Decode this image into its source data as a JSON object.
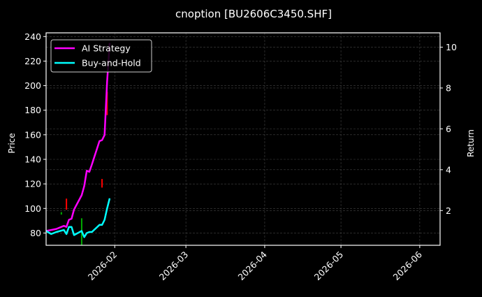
{
  "chart_data": {
    "type": "line",
    "title": "cnoption [BU2606C3450.SHF]",
    "xlabel": "",
    "ylabel_left": "Price",
    "ylabel_right": "Return",
    "x_ticks": [
      "2026-02",
      "2026-03",
      "2026-04",
      "2026-05",
      "2026-06"
    ],
    "y_ticks_left": [
      80,
      100,
      120,
      140,
      160,
      180,
      200,
      220,
      240
    ],
    "y_ticks_right": [
      2,
      4,
      6,
      8,
      10
    ],
    "ylim_left": [
      70,
      243
    ],
    "ylim_right": [
      0.3,
      10.7
    ],
    "xlim": [
      "2026-01-05",
      "2026-06-09"
    ],
    "grid": true,
    "legend_position": "upper left",
    "legend": [
      {
        "label": "AI Strategy",
        "color": "#ff00ff"
      },
      {
        "label": "Buy-and-Hold",
        "color": "#00ffff"
      }
    ],
    "series": [
      {
        "name": "AI Strategy",
        "axis": "right",
        "color": "#ff00ff",
        "x": [
          "2026-01-05",
          "2026-01-07",
          "2026-01-09",
          "2026-01-12",
          "2026-01-13",
          "2026-01-14",
          "2026-01-15",
          "2026-01-16",
          "2026-01-19",
          "2026-01-20",
          "2026-01-21",
          "2026-01-22",
          "2026-01-23",
          "2026-01-26",
          "2026-01-27",
          "2026-01-28",
          "2026-01-29",
          "2026-01-30"
        ],
        "values": [
          1.0,
          1.05,
          1.1,
          1.25,
          1.2,
          1.55,
          1.6,
          2.05,
          2.75,
          3.2,
          3.95,
          3.9,
          4.25,
          5.4,
          5.45,
          5.7,
          8.3,
          10.2
        ]
      },
      {
        "name": "Buy-and-Hold",
        "axis": "right",
        "color": "#00ffff",
        "x": [
          "2026-01-05",
          "2026-01-07",
          "2026-01-09",
          "2026-01-12",
          "2026-01-13",
          "2026-01-14",
          "2026-01-15",
          "2026-01-16",
          "2026-01-19",
          "2026-01-20",
          "2026-01-21",
          "2026-01-22",
          "2026-01-23",
          "2026-01-26",
          "2026-01-27",
          "2026-01-28",
          "2026-01-29",
          "2026-01-30"
        ],
        "values": [
          1.0,
          0.85,
          0.95,
          1.05,
          0.85,
          1.2,
          1.2,
          0.8,
          1.0,
          0.7,
          0.9,
          0.95,
          0.95,
          1.3,
          1.3,
          1.55,
          2.1,
          2.6
        ]
      }
    ],
    "markers": [
      {
        "type": "sell",
        "color": "#ff0000",
        "x": "2026-01-13",
        "price_low": 99,
        "price_high": 108
      },
      {
        "type": "buy",
        "color": "#00aa00",
        "x": "2026-01-11",
        "price_low": 95,
        "price_high": 97
      },
      {
        "type": "buy",
        "color": "#00aa00",
        "x": "2026-01-19",
        "price_low": 70,
        "price_high": 92
      },
      {
        "type": "sell",
        "color": "#ff0000",
        "x": "2026-01-27",
        "price_low": 117,
        "price_high": 124
      },
      {
        "type": "sell",
        "color": "#ff0000",
        "x": "2026-01-29",
        "price_low": 176,
        "price_high": 195
      }
    ]
  },
  "colors": {
    "background": "#000000",
    "axes": "#ffffff",
    "grid": "#444444",
    "ai_strategy": "#ff00ff",
    "buy_hold": "#00ffff",
    "sell_marker": "#ff0000",
    "buy_marker": "#00aa00"
  }
}
